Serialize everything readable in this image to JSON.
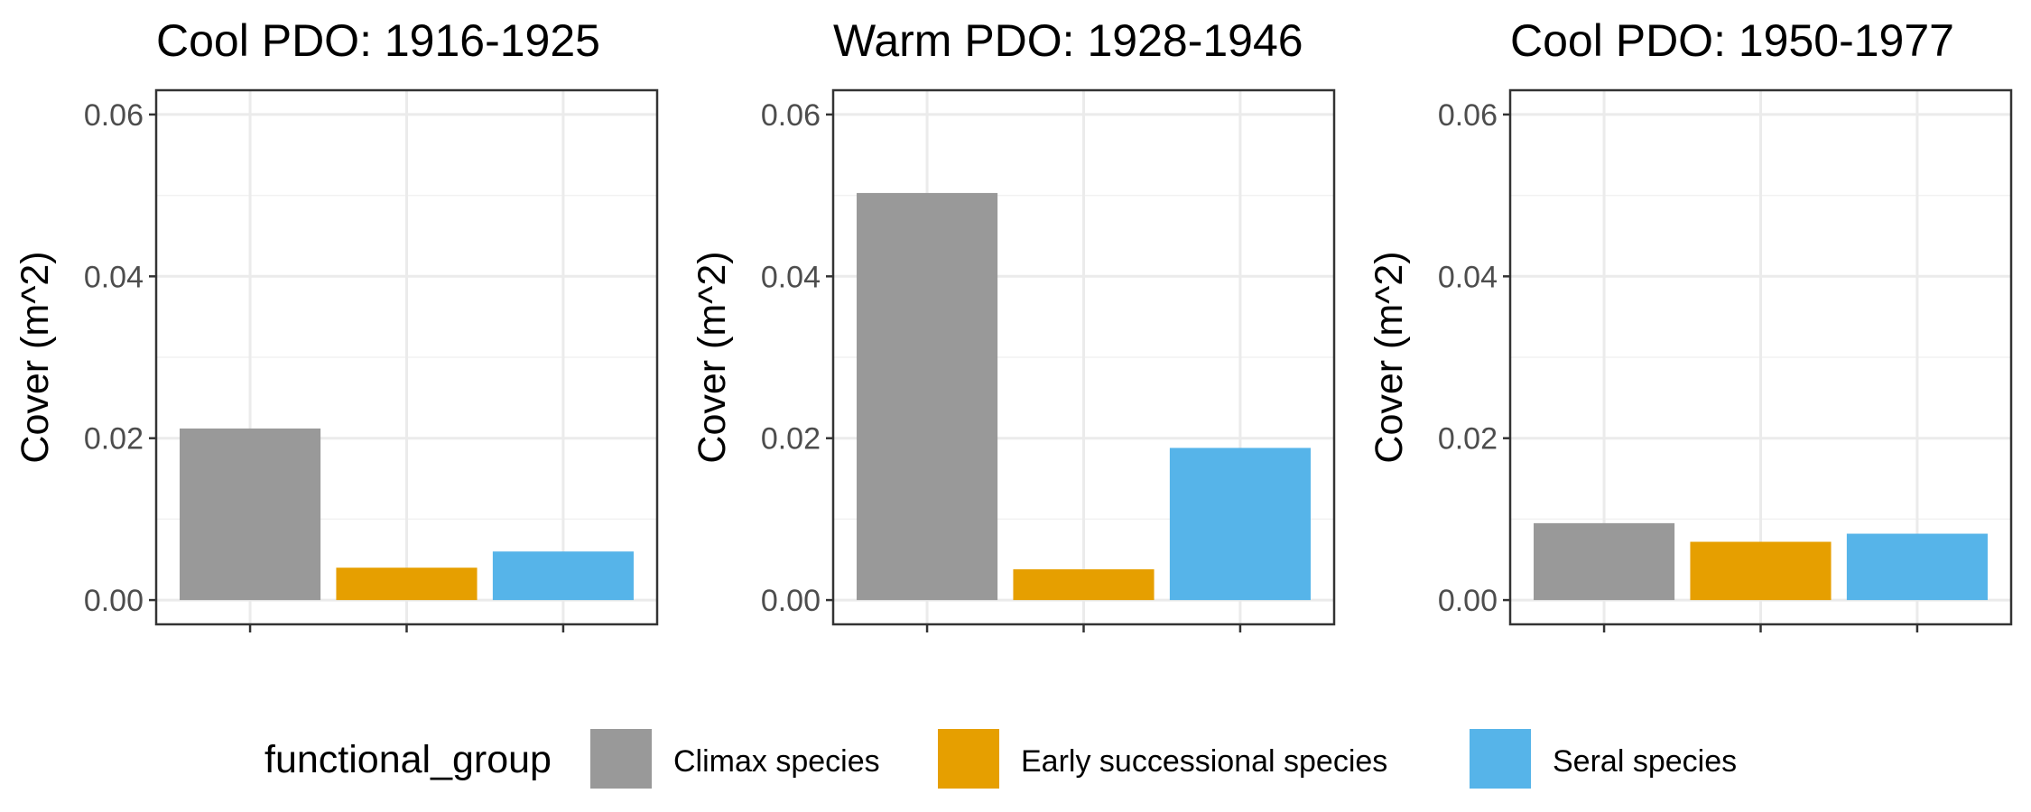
{
  "chart_data": {
    "type": "bar",
    "facets": [
      {
        "title": "Cool PDO: 1916-1925",
        "values": [
          0.0212,
          0.004,
          0.006
        ]
      },
      {
        "title": "Warm PDO: 1928-1946",
        "values": [
          0.0503,
          0.0038,
          0.0188
        ]
      },
      {
        "title": "Cool PDO: 1950-1977",
        "values": [
          0.0095,
          0.0072,
          0.0082
        ]
      }
    ],
    "categories": [
      "Climax species",
      "Early successional species",
      "Seral species"
    ],
    "colors": [
      "#999999",
      "#E69F00",
      "#56B4E9"
    ],
    "ylabel": "Cover (m^2)",
    "ylim": [
      -0.003,
      0.063
    ],
    "yticks": [
      0.0,
      0.02,
      0.04,
      0.06
    ],
    "ytick_labels": [
      "0.00",
      "0.02",
      "0.04",
      "0.06"
    ],
    "grid": true,
    "legend": {
      "title": "functional_group",
      "position": "bottom",
      "items": [
        "Climax species",
        "Early successional species",
        "Seral species"
      ]
    }
  }
}
